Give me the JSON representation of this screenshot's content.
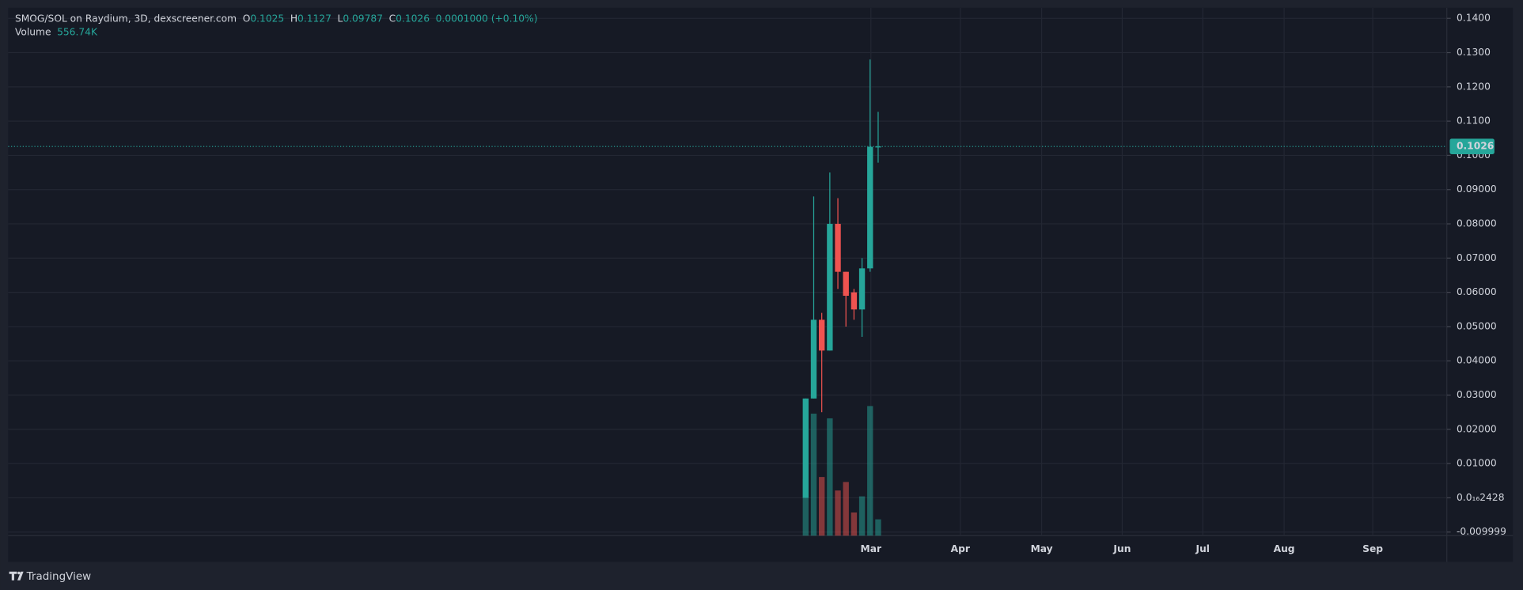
{
  "chart_data": {
    "type": "candlestick",
    "header": {
      "symbol": "SMOG/SOL on Raydium, 3D, dexscreener.com",
      "open_label": "O",
      "high_label": "H",
      "low_label": "L",
      "close_label": "C",
      "change": "0.0001000 (+0.10%)"
    },
    "x": [
      0,
      1,
      2,
      3,
      4,
      5,
      6,
      7,
      8,
      9
    ],
    "xlim": [
      -99,
      79.6
    ],
    "xticks": [
      {
        "value": 8.1,
        "label": "Mar"
      },
      {
        "value": 19.2,
        "label": "Apr"
      },
      {
        "value": 29.3,
        "label": "May"
      },
      {
        "value": 39.3,
        "label": "Jun"
      },
      {
        "value": 49.3,
        "label": "Jul"
      },
      {
        "value": 59.4,
        "label": "Aug"
      },
      {
        "value": 70.4,
        "label": "Sep"
      }
    ],
    "open": [
      0.0,
      0.029,
      0.052,
      0.043,
      0.08,
      0.066,
      0.06,
      0.055,
      0.067,
      0.1025
    ],
    "high": [
      0.029,
      0.088,
      0.054,
      0.095,
      0.0875,
      0.066,
      0.061,
      0.07,
      0.128,
      0.1127
    ],
    "low": [
      0.0,
      0.029,
      0.025,
      0.043,
      0.061,
      0.05,
      0.052,
      0.047,
      0.066,
      0.09787
    ],
    "close": [
      0.029,
      0.052,
      0.043,
      0.08,
      0.066,
      0.059,
      0.055,
      0.067,
      0.1025,
      0.1026
    ],
    "up_color": "#26a69a",
    "down_color": "#ef5350",
    "volume": {
      "name": "Volume",
      "values": [
        1930000,
        4160000,
        2000000,
        4000000,
        1540000,
        1830000,
        790000,
        1340000,
        4420000,
        556740
      ],
      "value_labels": [
        null,
        null,
        null,
        null,
        null,
        null,
        null,
        null,
        null,
        "556.74K"
      ]
    },
    "volume_ylim": [
      0,
      18000000
    ],
    "ylim": [
      -0.01105,
      0.1431
    ],
    "yticks": [
      {
        "value": 0.14,
        "label": "0.1400"
      },
      {
        "value": 0.13,
        "label": "0.1300"
      },
      {
        "value": 0.12,
        "label": "0.1200"
      },
      {
        "value": 0.11,
        "label": "0.1100"
      },
      {
        "value": 0.1,
        "label": "0.1000"
      },
      {
        "value": 0.09,
        "label": "0.09000"
      },
      {
        "value": 0.08,
        "label": "0.08000"
      },
      {
        "value": 0.07,
        "label": "0.07000"
      },
      {
        "value": 0.06,
        "label": "0.06000"
      },
      {
        "value": 0.05,
        "label": "0.05000"
      },
      {
        "value": 0.04,
        "label": "0.04000"
      },
      {
        "value": 0.03,
        "label": "0.03000"
      },
      {
        "value": 0.02,
        "label": "0.02000"
      },
      {
        "value": 0.01,
        "label": "0.01000"
      },
      {
        "value": 2.428e-17,
        "label": "0.0₁₆2428"
      },
      -0.009999
    ],
    "grid": true,
    "footer": "TradingView"
  }
}
